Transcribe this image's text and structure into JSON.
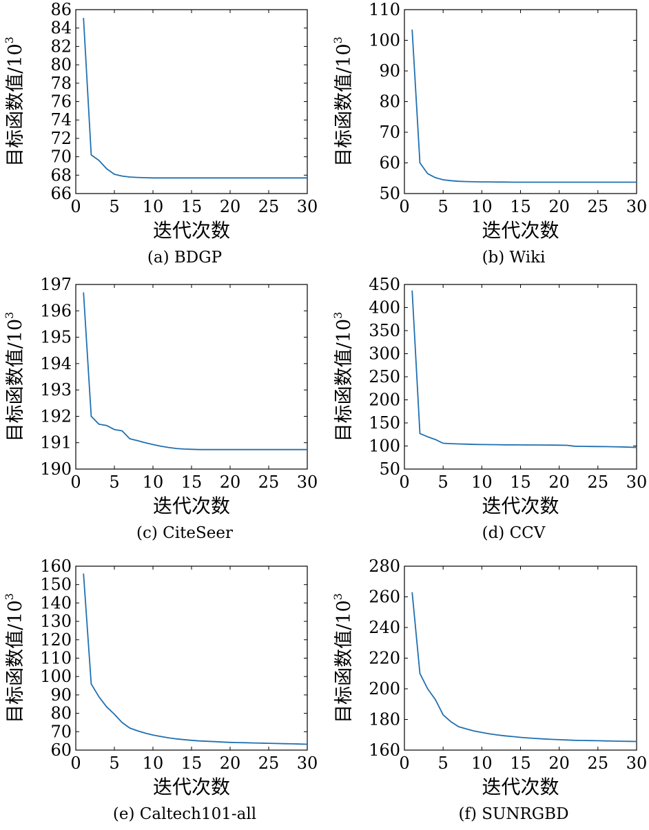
{
  "chart_data": [
    {
      "type": "line",
      "caption": "(a) BDGP",
      "xlabel": "迭代次数",
      "ylabel": "目标函数值/10",
      "ylabel_sup": "3",
      "xlim": [
        0,
        30
      ],
      "ylim": [
        66,
        86
      ],
      "xticks": [
        0,
        5,
        10,
        15,
        20,
        25,
        30
      ],
      "yticks": [
        66,
        68,
        70,
        72,
        74,
        76,
        78,
        80,
        82,
        84,
        86
      ],
      "color": "#1f6faf",
      "x": [
        1,
        2,
        3,
        4,
        5,
        6,
        7,
        8,
        9,
        10,
        11,
        12,
        13,
        14,
        15,
        16,
        17,
        18,
        19,
        20,
        21,
        22,
        23,
        24,
        25,
        26,
        27,
        28,
        29,
        30
      ],
      "y": [
        85.1,
        70.2,
        69.6,
        68.7,
        68.1,
        67.9,
        67.8,
        67.75,
        67.72,
        67.7,
        67.7,
        67.7,
        67.7,
        67.7,
        67.7,
        67.7,
        67.7,
        67.7,
        67.7,
        67.7,
        67.7,
        67.7,
        67.7,
        67.7,
        67.7,
        67.7,
        67.7,
        67.7,
        67.7,
        67.7
      ]
    },
    {
      "type": "line",
      "caption": "(b) Wiki",
      "xlabel": "迭代次数",
      "ylabel": "目标函数值/10",
      "ylabel_sup": "3",
      "xlim": [
        0,
        30
      ],
      "ylim": [
        50,
        110
      ],
      "xticks": [
        0,
        5,
        10,
        15,
        20,
        25,
        30
      ],
      "yticks": [
        50,
        60,
        70,
        80,
        90,
        100,
        110
      ],
      "color": "#1f6faf",
      "x": [
        1,
        2,
        3,
        4,
        5,
        6,
        7,
        8,
        9,
        10,
        11,
        12,
        13,
        14,
        15,
        16,
        17,
        18,
        19,
        20,
        21,
        22,
        23,
        24,
        25,
        26,
        27,
        28,
        29,
        30
      ],
      "y": [
        103.5,
        60,
        56.5,
        55.2,
        54.5,
        54.2,
        54.0,
        53.9,
        53.85,
        53.8,
        53.8,
        53.75,
        53.75,
        53.7,
        53.7,
        53.7,
        53.7,
        53.7,
        53.7,
        53.7,
        53.7,
        53.7,
        53.7,
        53.7,
        53.7,
        53.7,
        53.7,
        53.7,
        53.7,
        53.7
      ]
    },
    {
      "type": "line",
      "caption": "(c) CiteSeer",
      "xlabel": "迭代次数",
      "ylabel": "目标函数值/10",
      "ylabel_sup": "3",
      "xlim": [
        0,
        30
      ],
      "ylim": [
        190,
        197
      ],
      "xticks": [
        0,
        5,
        10,
        15,
        20,
        25,
        30
      ],
      "yticks": [
        190,
        191,
        192,
        193,
        194,
        195,
        196,
        197
      ],
      "color": "#1f6faf",
      "x": [
        1,
        2,
        3,
        4,
        5,
        6,
        7,
        8,
        9,
        10,
        11,
        12,
        13,
        14,
        15,
        16,
        17,
        18,
        19,
        20,
        21,
        22,
        23,
        24,
        25,
        26,
        27,
        28,
        29,
        30
      ],
      "y": [
        196.7,
        192.0,
        191.7,
        191.65,
        191.5,
        191.45,
        191.15,
        191.08,
        191.0,
        190.93,
        190.87,
        190.82,
        190.78,
        190.76,
        190.75,
        190.74,
        190.74,
        190.74,
        190.74,
        190.74,
        190.74,
        190.74,
        190.74,
        190.74,
        190.74,
        190.74,
        190.74,
        190.74,
        190.74,
        190.74
      ]
    },
    {
      "type": "line",
      "caption": "(d) CCV",
      "xlabel": "迭代次数",
      "ylabel": "目标函数值/10",
      "ylabel_sup": "3",
      "xlim": [
        0,
        30
      ],
      "ylim": [
        50,
        450
      ],
      "xticks": [
        0,
        5,
        10,
        15,
        20,
        25,
        30
      ],
      "yticks": [
        50,
        100,
        150,
        200,
        250,
        300,
        350,
        400,
        450
      ],
      "color": "#1f6faf",
      "x": [
        1,
        2,
        3,
        4,
        5,
        6,
        7,
        8,
        9,
        10,
        11,
        12,
        13,
        14,
        15,
        16,
        17,
        18,
        19,
        20,
        21,
        22,
        23,
        24,
        25,
        26,
        27,
        28,
        29,
        30
      ],
      "y": [
        437,
        127,
        120,
        114,
        106,
        105,
        104.5,
        104,
        103.5,
        103.2,
        103,
        102.8,
        102.6,
        102.5,
        102.4,
        102.3,
        102.2,
        102.1,
        102,
        101.8,
        101.5,
        99.5,
        99.2,
        99,
        98.8,
        98.6,
        98.3,
        98,
        97.5,
        96.8
      ]
    },
    {
      "type": "line",
      "caption": "(e) Caltech101-all",
      "xlabel": "迭代次数",
      "ylabel": "目标函数值/10",
      "ylabel_sup": "3",
      "xlim": [
        0,
        30
      ],
      "ylim": [
        60,
        160
      ],
      "xticks": [
        0,
        5,
        10,
        15,
        20,
        25,
        30
      ],
      "yticks": [
        60,
        70,
        80,
        90,
        100,
        110,
        120,
        130,
        140,
        150,
        160
      ],
      "color": "#1f6faf",
      "x": [
        1,
        2,
        3,
        4,
        5,
        6,
        7,
        8,
        9,
        10,
        11,
        12,
        13,
        14,
        15,
        16,
        17,
        18,
        19,
        20,
        21,
        22,
        23,
        24,
        25,
        26,
        27,
        28,
        29,
        30
      ],
      "y": [
        156,
        96,
        89,
        83.5,
        79.5,
        75,
        72,
        70.5,
        69.2,
        68.2,
        67.4,
        66.7,
        66.1,
        65.7,
        65.3,
        65.0,
        64.8,
        64.6,
        64.4,
        64.2,
        64.1,
        64.0,
        63.9,
        63.8,
        63.7,
        63.6,
        63.5,
        63.4,
        63.3,
        63.2
      ]
    },
    {
      "type": "line",
      "caption": "(f) SUNRGBD",
      "xlabel": "迭代次数",
      "ylabel": "目标函数值/10",
      "ylabel_sup": "3",
      "xlim": [
        0,
        30
      ],
      "ylim": [
        160,
        280
      ],
      "xticks": [
        0,
        5,
        10,
        15,
        20,
        25,
        30
      ],
      "yticks": [
        160,
        180,
        200,
        220,
        240,
        260,
        280
      ],
      "color": "#1f6faf",
      "x": [
        1,
        2,
        3,
        4,
        5,
        6,
        7,
        8,
        9,
        10,
        11,
        12,
        13,
        14,
        15,
        16,
        17,
        18,
        19,
        20,
        21,
        22,
        23,
        24,
        25,
        26,
        27,
        28,
        29,
        30
      ],
      "y": [
        263,
        210,
        200,
        193,
        183,
        178.5,
        175.3,
        173.8,
        172.5,
        171.5,
        170.6,
        169.9,
        169.3,
        168.8,
        168.3,
        167.9,
        167.6,
        167.3,
        167.0,
        166.8,
        166.6,
        166.4,
        166.3,
        166.2,
        166.1,
        166.0,
        165.9,
        165.8,
        165.7,
        165.6
      ]
    }
  ]
}
